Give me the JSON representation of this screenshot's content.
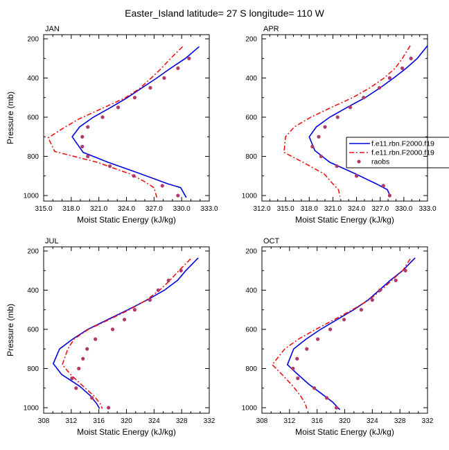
{
  "title": "Easter_Island  latitude= 27 S longitude= 110 W",
  "colors": {
    "model1": "#0000dd",
    "model2": "#ee1111",
    "obs": "#b03a6a"
  },
  "legend": {
    "entries": [
      {
        "label": "f.e11.rbn.F2000.f19",
        "style": "solid",
        "color": "#0000dd"
      },
      {
        "label": "f.e11.rbn.F2000.f19",
        "style": "dashed",
        "color": "#ee1111"
      },
      {
        "label": "raobs",
        "style": "dot",
        "color": "#b03a6a"
      }
    ]
  },
  "chart_data": [
    {
      "panel": "JAN",
      "type": "line",
      "xlabel": "Moist Static Energy (kJ/kg)",
      "ylabel": "Pressure (mb)",
      "xlim": [
        315.0,
        333.0
      ],
      "ylim": [
        1000,
        200
      ],
      "y_reversed": true,
      "xticks": [
        315.0,
        318.0,
        321.0,
        324.0,
        327.0,
        330.0,
        333.0
      ],
      "xtick_labels": [
        "315.0",
        "318.0",
        "321.0",
        "324.0",
        "327.0",
        "330.0",
        "333.0"
      ],
      "yticks": [
        200,
        400,
        600,
        800,
        1000
      ],
      "ytick_labels": [
        "200",
        "400",
        "600",
        "800",
        "1000"
      ],
      "series": [
        {
          "kind": "solid",
          "points": [
            [
              318.1,
              700
            ],
            [
              318.9,
              650
            ],
            [
              320.4,
              600
            ],
            [
              322.3,
              550
            ],
            [
              324.1,
              500
            ],
            [
              325.7,
              450
            ],
            [
              327.3,
              400
            ],
            [
              328.8,
              350
            ],
            [
              330.4,
              300
            ],
            [
              331.9,
              240
            ],
            [
              319.3,
              780
            ],
            [
              322.0,
              830
            ],
            [
              325.0,
              880
            ],
            [
              328.5,
              940
            ],
            [
              329.9,
              960
            ],
            [
              330.5,
              1010
            ]
          ]
        },
        {
          "kind": "dashed",
          "points": [
            [
              315.5,
              705
            ],
            [
              317.0,
              660
            ],
            [
              318.8,
              610
            ],
            [
              321.6,
              550
            ],
            [
              323.9,
              500
            ],
            [
              325.4,
              455
            ],
            [
              326.7,
              400
            ],
            [
              327.8,
              350
            ],
            [
              328.8,
              300
            ],
            [
              330.1,
              240
            ],
            [
              316.2,
              775
            ],
            [
              320.8,
              830
            ],
            [
              324.4,
              890
            ],
            [
              326.0,
              930
            ],
            [
              327.0,
              960
            ],
            [
              327.3,
              1010
            ]
          ]
        },
        {
          "kind": "dots",
          "points": [
            [
              330.8,
              300
            ],
            [
              329.6,
              350
            ],
            [
              328.1,
              400
            ],
            [
              326.6,
              450
            ],
            [
              324.9,
              500
            ],
            [
              323.1,
              550
            ],
            [
              321.4,
              600
            ],
            [
              319.8,
              650
            ],
            [
              319.2,
              700
            ],
            [
              319.2,
              750
            ],
            [
              319.8,
              800
            ],
            [
              322.2,
              850
            ],
            [
              324.8,
              900
            ],
            [
              327.9,
              950
            ],
            [
              329.6,
              1000
            ]
          ]
        }
      ]
    },
    {
      "panel": "APR",
      "type": "line",
      "xlabel": "Moist Static Energy (kJ/kg)",
      "ylabel": "",
      "xlim": [
        312.0,
        333.0
      ],
      "ylim": [
        1000,
        200
      ],
      "y_reversed": true,
      "xticks": [
        312.0,
        315.0,
        318.0,
        321.0,
        324.0,
        327.0,
        330.0,
        333.0
      ],
      "xtick_labels": [
        "312.0",
        "315.0",
        "318.0",
        "321.0",
        "324.0",
        "327.0",
        "330.0",
        "333.0"
      ],
      "yticks": [
        200,
        400,
        600,
        800,
        1000
      ],
      "ytick_labels": [
        "200",
        "400",
        "600",
        "800",
        "1000"
      ],
      "series": [
        {
          "kind": "solid",
          "points": [
            [
              318.0,
              700
            ],
            [
              318.9,
              650
            ],
            [
              320.6,
              600
            ],
            [
              322.8,
              550
            ],
            [
              325.1,
              500
            ],
            [
              327.0,
              450
            ],
            [
              328.7,
              400
            ],
            [
              330.3,
              350
            ],
            [
              331.7,
              300
            ],
            [
              333.0,
              235
            ],
            [
              318.7,
              770
            ],
            [
              320.6,
              830
            ],
            [
              323.9,
              890
            ],
            [
              326.5,
              940
            ],
            [
              327.9,
              970
            ],
            [
              328.3,
              1005
            ]
          ]
        },
        {
          "kind": "dashed",
          "points": [
            [
              315.0,
              700
            ],
            [
              316.1,
              650
            ],
            [
              318.2,
              600
            ],
            [
              320.8,
              550
            ],
            [
              323.5,
              500
            ],
            [
              325.7,
              450
            ],
            [
              327.5,
              400
            ],
            [
              328.9,
              350
            ],
            [
              329.8,
              300
            ],
            [
              330.8,
              235
            ],
            [
              314.8,
              780
            ],
            [
              317.2,
              830
            ],
            [
              319.9,
              890
            ],
            [
              321.0,
              940
            ],
            [
              321.7,
              970
            ],
            [
              321.9,
              1005
            ]
          ]
        },
        {
          "kind": "dots",
          "points": [
            [
              330.9,
              300
            ],
            [
              329.8,
              350
            ],
            [
              328.2,
              400
            ],
            [
              326.9,
              450
            ],
            [
              324.9,
              500
            ],
            [
              323.2,
              550
            ],
            [
              321.6,
              600
            ],
            [
              320.0,
              650
            ],
            [
              319.2,
              700
            ],
            [
              318.4,
              750
            ],
            [
              319.5,
              800
            ],
            [
              321.5,
              850
            ],
            [
              324.0,
              900
            ],
            [
              327.4,
              950
            ],
            [
              328.2,
              1000
            ]
          ]
        }
      ]
    },
    {
      "panel": "JUL",
      "type": "line",
      "xlabel": "Moist Static Energy (kJ/kg)",
      "ylabel": "Pressure (mb)",
      "xlim": [
        308,
        332
      ],
      "ylim": [
        1000,
        200
      ],
      "y_reversed": true,
      "xticks": [
        308,
        312,
        316,
        320,
        324,
        328,
        332
      ],
      "xtick_labels": [
        "308",
        "312",
        "316",
        "320",
        "324",
        "328",
        "332"
      ],
      "yticks": [
        200,
        400,
        600,
        800,
        1000
      ],
      "ytick_labels": [
        "200",
        "400",
        "600",
        "800",
        "1000"
      ],
      "series": [
        {
          "kind": "solid",
          "points": [
            [
              310.3,
              700
            ],
            [
              312.2,
              650
            ],
            [
              314.4,
              600
            ],
            [
              317.3,
              550
            ],
            [
              320.2,
              500
            ],
            [
              323.0,
              450
            ],
            [
              325.5,
              400
            ],
            [
              327.4,
              350
            ],
            [
              328.6,
              300
            ],
            [
              330.4,
              235
            ],
            [
              309.4,
              775
            ],
            [
              310.6,
              830
            ],
            [
              313.2,
              890
            ],
            [
              314.8,
              940
            ],
            [
              315.7,
              980
            ],
            [
              316.1,
              1005
            ]
          ]
        },
        {
          "kind": "dashed",
          "points": [
            [
              311.5,
              700
            ],
            [
              312.4,
              650
            ],
            [
              314.5,
              600
            ],
            [
              317.5,
              550
            ],
            [
              320.4,
              500
            ],
            [
              322.9,
              450
            ],
            [
              324.8,
              400
            ],
            [
              326.3,
              350
            ],
            [
              327.6,
              300
            ],
            [
              329.3,
              240
            ],
            [
              310.7,
              780
            ],
            [
              311.9,
              830
            ],
            [
              313.7,
              890
            ],
            [
              315.3,
              940
            ],
            [
              316.2,
              980
            ],
            [
              316.5,
              1005
            ]
          ]
        },
        {
          "kind": "dots",
          "points": [
            [
              327.9,
              300
            ],
            [
              326.1,
              350
            ],
            [
              324.6,
              400
            ],
            [
              323.4,
              450
            ],
            [
              321.2,
              500
            ],
            [
              319.7,
              550
            ],
            [
              318.0,
              600
            ],
            [
              315.5,
              650
            ],
            [
              314.3,
              700
            ],
            [
              313.7,
              750
            ],
            [
              313.1,
              800
            ],
            [
              312.1,
              850
            ],
            [
              312.7,
              900
            ],
            [
              315.0,
              950
            ],
            [
              317.4,
              1000
            ]
          ]
        }
      ]
    },
    {
      "panel": "OCT",
      "type": "line",
      "xlabel": "Moist Static Energy (kJ/kg)",
      "ylabel": "",
      "xlim": [
        308,
        332
      ],
      "ylim": [
        1000,
        200
      ],
      "y_reversed": true,
      "xticks": [
        308,
        312,
        316,
        320,
        324,
        328,
        332
      ],
      "xtick_labels": [
        "308",
        "312",
        "316",
        "320",
        "324",
        "328",
        "332"
      ],
      "yticks": [
        200,
        400,
        600,
        800,
        1000
      ],
      "ytick_labels": [
        "200",
        "400",
        "600",
        "800",
        "1000"
      ],
      "series": [
        {
          "kind": "solid",
          "points": [
            [
              312.6,
              700
            ],
            [
              314.4,
              650
            ],
            [
              316.5,
              600
            ],
            [
              318.9,
              550
            ],
            [
              321.3,
              500
            ],
            [
              323.4,
              450
            ],
            [
              325.0,
              400
            ],
            [
              326.6,
              350
            ],
            [
              328.4,
              300
            ],
            [
              330.2,
              235
            ],
            [
              311.7,
              780
            ],
            [
              313.2,
              830
            ],
            [
              314.8,
              880
            ],
            [
              316.7,
              930
            ],
            [
              318.2,
              970
            ],
            [
              319.3,
              1010
            ]
          ]
        },
        {
          "kind": "dashed",
          "points": [
            [
              311.3,
              700
            ],
            [
              313.3,
              650
            ],
            [
              315.8,
              600
            ],
            [
              318.5,
              550
            ],
            [
              321.1,
              500
            ],
            [
              323.5,
              450
            ],
            [
              325.3,
              400
            ],
            [
              326.8,
              350
            ],
            [
              328.4,
              300
            ],
            [
              329.5,
              240
            ],
            [
              309.5,
              780
            ],
            [
              310.9,
              830
            ],
            [
              312.5,
              890
            ],
            [
              313.6,
              940
            ],
            [
              314.3,
              980
            ],
            [
              314.5,
              1005
            ]
          ]
        },
        {
          "kind": "dots",
          "points": [
            [
              328.8,
              300
            ],
            [
              327.4,
              350
            ],
            [
              325.1,
              400
            ],
            [
              324.0,
              450
            ],
            [
              322.4,
              500
            ],
            [
              319.9,
              550
            ],
            [
              317.9,
              600
            ],
            [
              316.1,
              650
            ],
            [
              314.5,
              700
            ],
            [
              313.1,
              750
            ],
            [
              312.5,
              800
            ],
            [
              313.2,
              850
            ],
            [
              315.6,
              900
            ],
            [
              317.4,
              950
            ],
            [
              318.8,
              1000
            ]
          ]
        }
      ]
    }
  ]
}
